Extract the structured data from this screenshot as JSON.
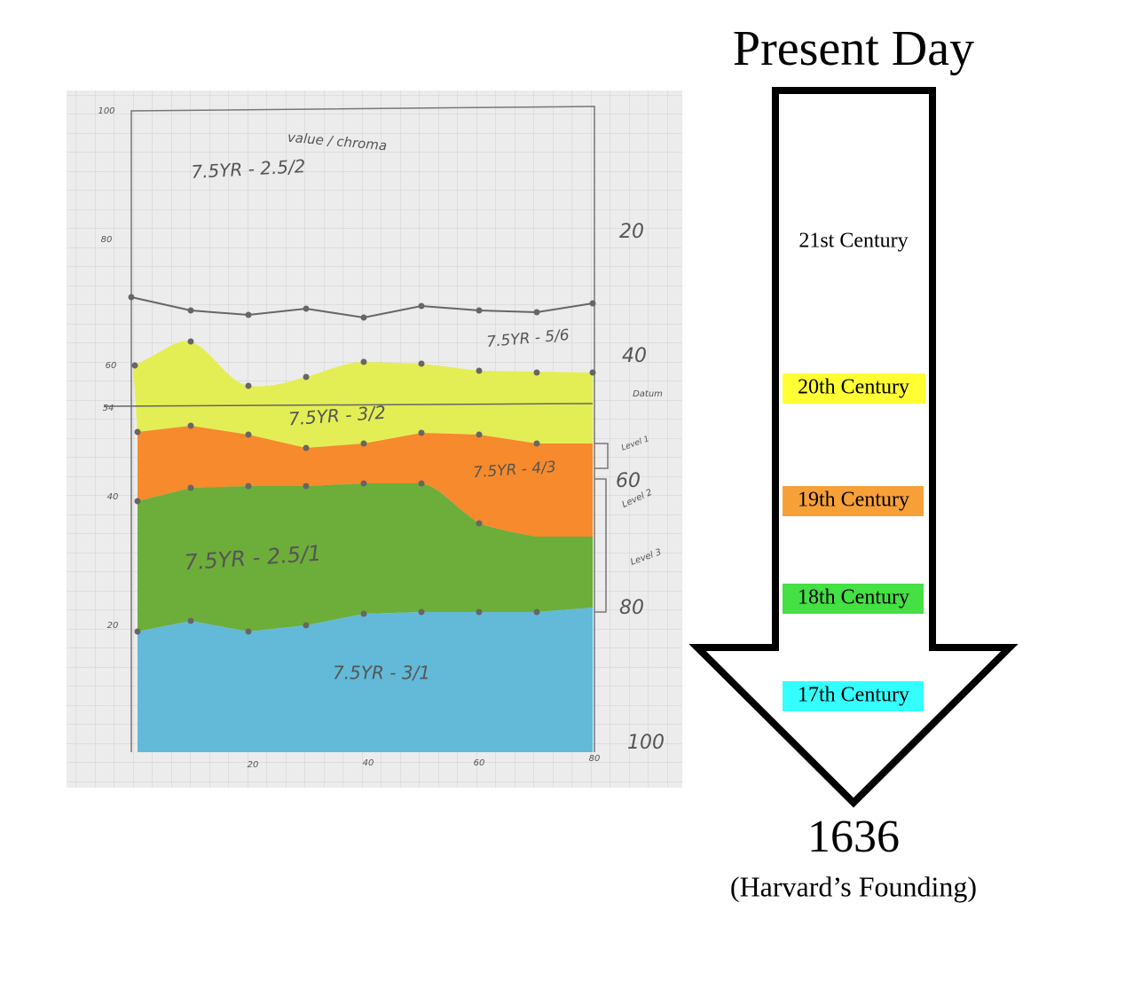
{
  "sketch": {
    "left_axis": [
      "100",
      "80",
      "60",
      "54",
      "40",
      "20"
    ],
    "right_axis": [
      "20",
      "40",
      "60",
      "80",
      "100"
    ],
    "bottom_axis": [
      "20",
      "40",
      "60",
      "80"
    ],
    "header_note": "value / chroma",
    "side_notes": [
      "Datum",
      "Level 1",
      "Level 2",
      "Level 3"
    ],
    "layers": [
      "7.5YR - 2.5/2",
      "7.5YR - 5/6",
      "7.5YR - 3/2",
      "7.5YR - 4/3",
      "7.5YR - 2.5/1",
      "7.5YR - 3/1"
    ]
  },
  "timeline": {
    "top": "Present Day",
    "centuries": [
      "21st Century",
      "20th Century",
      "19th Century",
      "18th Century",
      "17th Century"
    ],
    "bottom": "1636",
    "caption": "(Harvard’s Founding)"
  }
}
